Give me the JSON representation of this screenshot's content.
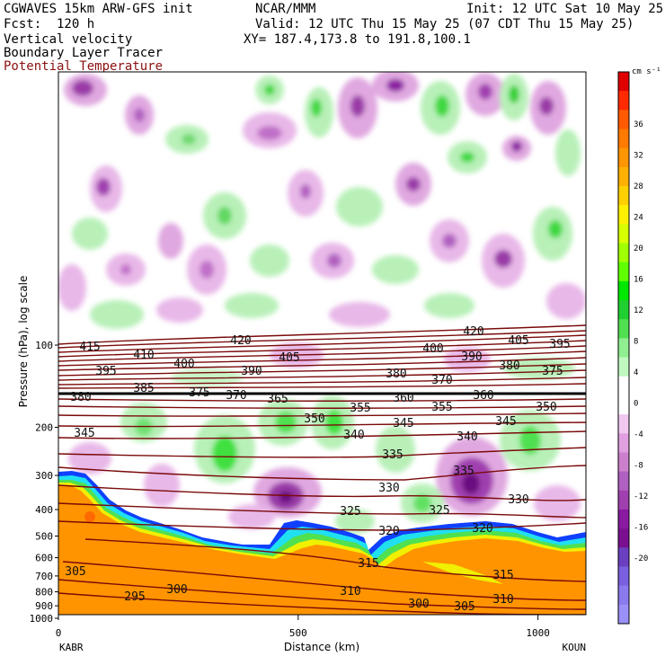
{
  "header": {
    "line1_left": "CGWAVES 15km ARW-GFS init",
    "line1_center": "NCAR/MMM",
    "line1_right": "Init: 12 UTC Sat 10 May 25",
    "line2_left": "Fcst:  120 h",
    "line2_right": "Valid: 12 UTC Thu 15 May 25 (07 CDT Thu 15 May 25)",
    "line3_left": "Vertical velocity",
    "line3_right": "XY= 187.4,173.8 to 191.8,100.1",
    "line4_left": "Boundary Layer Tracer",
    "line5_left": "Potential Temperature"
  },
  "chart_data": {
    "type": "heatmap",
    "xlabel": "Distance (km)",
    "ylabel": "Pressure (hPa), log scale",
    "x_range": [
      0,
      1100
    ],
    "x_ticks": [
      0,
      500,
      1000
    ],
    "y_ticks": [
      100,
      200,
      300,
      400,
      500,
      600,
      700,
      800,
      900,
      1000
    ],
    "x_endpoints": {
      "left": "KABR",
      "right": "KOUN"
    },
    "colorbar": {
      "unit": "cm s⁻¹",
      "labels": [
        "36",
        "32",
        "28",
        "24",
        "20",
        "16",
        "12",
        "8",
        "4",
        "0",
        "-4",
        "-8",
        "-12",
        "-16",
        "-20"
      ],
      "colors": [
        "#e00000",
        "#ff2a00",
        "#ff5a00",
        "#ff7a00",
        "#ff9500",
        "#ffb000",
        "#ffd000",
        "#fff000",
        "#d8ff00",
        "#a0ff00",
        "#60ff00",
        "#00e800",
        "#20d030",
        "#50e050",
        "#90ef90",
        "#c0f8c0",
        "#ffffff",
        "#ffffff",
        "#f0c8f0",
        "#e0a0e0",
        "#cc80cc",
        "#b060c0",
        "#a040b0",
        "#8a1aa0",
        "#7a1090",
        "#6a40c0",
        "#7a60e0",
        "#8a7aee",
        "#9a90f8"
      ]
    },
    "theta_labels": [
      {
        "v": "420",
        "x": 268,
        "y": 379
      },
      {
        "v": "420",
        "x": 527,
        "y": 369
      },
      {
        "v": "415",
        "x": 100,
        "y": 386
      },
      {
        "v": "410",
        "x": 160,
        "y": 395
      },
      {
        "v": "405",
        "x": 322,
        "y": 398
      },
      {
        "v": "405",
        "x": 577,
        "y": 379
      },
      {
        "v": "400",
        "x": 205,
        "y": 405
      },
      {
        "v": "400",
        "x": 482,
        "y": 388
      },
      {
        "v": "395",
        "x": 118,
        "y": 413
      },
      {
        "v": "395",
        "x": 623,
        "y": 383
      },
      {
        "v": "390",
        "x": 280,
        "y": 413
      },
      {
        "v": "390",
        "x": 525,
        "y": 397
      },
      {
        "v": "385",
        "x": 160,
        "y": 432
      },
      {
        "v": "380",
        "x": 441,
        "y": 416
      },
      {
        "v": "380",
        "x": 567,
        "y": 407
      },
      {
        "v": "380",
        "x": 90,
        "y": 442
      },
      {
        "v": "375",
        "x": 222,
        "y": 437
      },
      {
        "v": "375",
        "x": 615,
        "y": 413
      },
      {
        "v": "370",
        "x": 263,
        "y": 440
      },
      {
        "v": "370",
        "x": 492,
        "y": 423
      },
      {
        "v": "365",
        "x": 309,
        "y": 444
      },
      {
        "v": "360",
        "x": 449,
        "y": 443
      },
      {
        "v": "360",
        "x": 538,
        "y": 440
      },
      {
        "v": "355",
        "x": 401,
        "y": 454
      },
      {
        "v": "355",
        "x": 492,
        "y": 453
      },
      {
        "v": "350",
        "x": 350,
        "y": 466
      },
      {
        "v": "350",
        "x": 608,
        "y": 453
      },
      {
        "v": "345",
        "x": 94,
        "y": 482
      },
      {
        "v": "345",
        "x": 449,
        "y": 471
      },
      {
        "v": "345",
        "x": 563,
        "y": 469
      },
      {
        "v": "340",
        "x": 394,
        "y": 484
      },
      {
        "v": "340",
        "x": 520,
        "y": 486
      },
      {
        "v": "335",
        "x": 437,
        "y": 506
      },
      {
        "v": "335",
        "x": 516,
        "y": 524
      },
      {
        "v": "330",
        "x": 433,
        "y": 543
      },
      {
        "v": "330",
        "x": 577,
        "y": 556
      },
      {
        "v": "325",
        "x": 390,
        "y": 569
      },
      {
        "v": "325",
        "x": 489,
        "y": 568
      },
      {
        "v": "320",
        "x": 433,
        "y": 591
      },
      {
        "v": "320",
        "x": 537,
        "y": 588
      },
      {
        "v": "315",
        "x": 410,
        "y": 627
      },
      {
        "v": "315",
        "x": 560,
        "y": 640
      },
      {
        "v": "310",
        "x": 390,
        "y": 658
      },
      {
        "v": "310",
        "x": 560,
        "y": 667
      },
      {
        "v": "305",
        "x": 84,
        "y": 636
      },
      {
        "v": "305",
        "x": 517,
        "y": 675
      },
      {
        "v": "300",
        "x": 197,
        "y": 656
      },
      {
        "v": "300",
        "x": 466,
        "y": 672
      },
      {
        "v": "295",
        "x": 150,
        "y": 664
      }
    ]
  }
}
